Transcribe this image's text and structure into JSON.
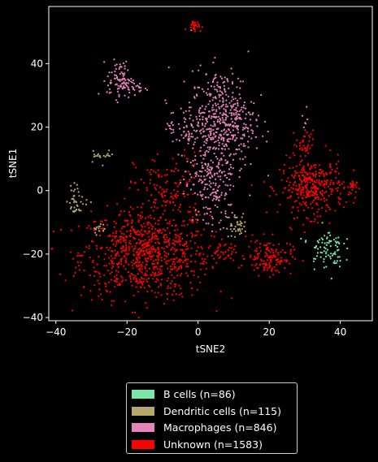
{
  "chart_data": {
    "type": "scatter",
    "title": "",
    "xlabel": "tSNE2",
    "ylabel": "tSNE1",
    "xlim": [
      -42,
      49
    ],
    "ylim": [
      -41,
      58
    ],
    "xticks": [
      -40,
      -20,
      0,
      20,
      40
    ],
    "yticks": [
      -40,
      -20,
      0,
      20,
      40
    ],
    "grid": false,
    "legend_placement": "below",
    "series": [
      {
        "name": "B cells (n=86)",
        "color": "#77e8a8",
        "clusters": [
          {
            "cx": 36,
            "cy": -18,
            "sx": 2.4,
            "sy": 3.2,
            "n": 86
          }
        ]
      },
      {
        "name": "Dendritic cells (n=115)",
        "color": "#b5a86a",
        "clusters": [
          {
            "cx": -27,
            "cy": 11,
            "sx": 1.8,
            "sy": 1.0,
            "n": 20
          },
          {
            "cx": -34,
            "cy": -3,
            "sx": 1.5,
            "sy": 2.5,
            "n": 40
          },
          {
            "cx": 11,
            "cy": -11,
            "sx": 1.6,
            "sy": 2.0,
            "n": 40
          },
          {
            "cx": -28,
            "cy": -12,
            "sx": 0.8,
            "sy": 1.0,
            "n": 15
          }
        ]
      },
      {
        "name": "Macrophages (n=846)",
        "color": "#e583bd",
        "clusters": [
          {
            "cx": -22,
            "cy": 35,
            "sx": 1.8,
            "sy": 3.0,
            "n": 90
          },
          {
            "cx": -17,
            "cy": 32,
            "sx": 1.5,
            "sy": 0.8,
            "n": 20
          },
          {
            "cx": 7,
            "cy": 22,
            "sx": 4.5,
            "sy": 8.0,
            "n": 470
          },
          {
            "cx": 3,
            "cy": 3,
            "sx": 3.5,
            "sy": 4.5,
            "n": 150
          },
          {
            "cx": -3,
            "cy": 20,
            "sx": 3.0,
            "sy": 4.0,
            "n": 80
          },
          {
            "cx": 5,
            "cy": -8,
            "sx": 3.0,
            "sy": 2.5,
            "n": 30
          },
          {
            "cx": 30,
            "cy": 23,
            "sx": 0.8,
            "sy": 1.5,
            "n": 6
          }
        ]
      },
      {
        "name": "Unknown (n=1583)",
        "color": "#ff0000",
        "clusters": [
          {
            "cx": -15,
            "cy": -20,
            "sx": 9.0,
            "sy": 7.0,
            "n": 820
          },
          {
            "cx": -8,
            "cy": 0,
            "sx": 5.0,
            "sy": 6.0,
            "n": 140
          },
          {
            "cx": 32,
            "cy": 1,
            "sx": 4.5,
            "sy": 4.5,
            "n": 360
          },
          {
            "cx": 20,
            "cy": -21,
            "sx": 3.2,
            "sy": 2.8,
            "n": 140
          },
          {
            "cx": -1,
            "cy": 52,
            "sx": 1.0,
            "sy": 0.8,
            "n": 28
          },
          {
            "cx": 43,
            "cy": 1,
            "sx": 0.8,
            "sy": 1.3,
            "n": 22
          },
          {
            "cx": 6,
            "cy": -20,
            "sx": 2.5,
            "sy": 1.5,
            "n": 40
          },
          {
            "cx": 30,
            "cy": 15,
            "sx": 1.2,
            "sy": 2.0,
            "n": 33
          }
        ]
      }
    ]
  },
  "legend": {
    "items": [
      {
        "label": "B cells (n=86)",
        "color": "#77e8a8"
      },
      {
        "label": "Dendritic cells (n=115)",
        "color": "#b5a86a"
      },
      {
        "label": "Macrophages (n=846)",
        "color": "#e583bd"
      },
      {
        "label": "Unknown (n=1583)",
        "color": "#ff0000"
      }
    ]
  }
}
